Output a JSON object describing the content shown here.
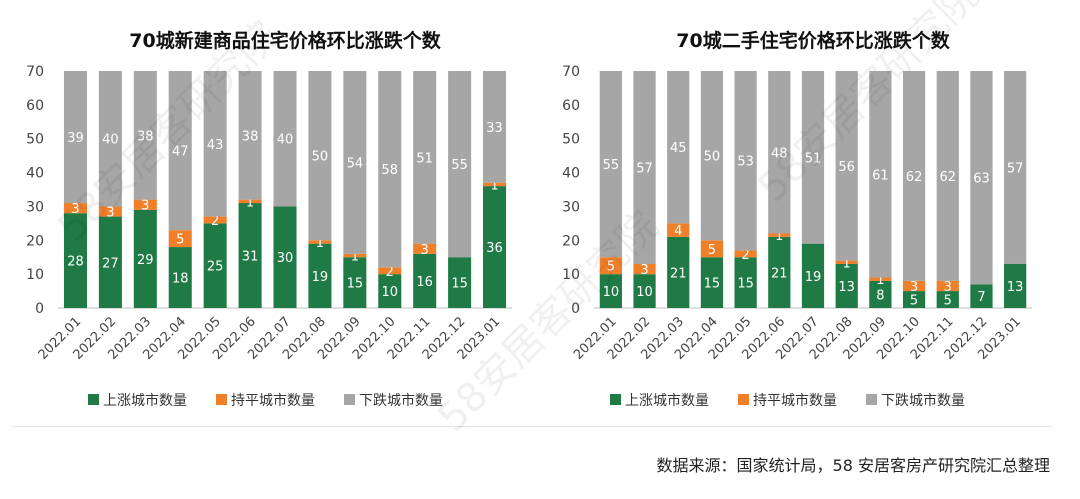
{
  "colors": {
    "up": "#1f7a45",
    "flat": "#f07f2a",
    "down": "#a6a6a6"
  },
  "source_text": "数据来源：国家统计局，58 安居客房产研究院汇总整理",
  "watermark_text": "58安居客研究院",
  "chart_data": [
    {
      "type": "bar",
      "stacked": true,
      "title": "70城新建商品住宅价格环比涨跌个数",
      "categories": [
        "2022.01",
        "2022.02",
        "2022.03",
        "2022.04",
        "2022.05",
        "2022.06",
        "2022.07",
        "2022.08",
        "2022.09",
        "2022.10",
        "2022.11",
        "2022.12",
        "2023.01"
      ],
      "series": [
        {
          "name": "上涨城市数量",
          "color": "#1f7a45",
          "values": [
            28,
            27,
            29,
            18,
            25,
            31,
            30,
            19,
            15,
            10,
            16,
            15,
            36
          ]
        },
        {
          "name": "持平城市数量",
          "color": "#f07f2a",
          "values": [
            3,
            3,
            3,
            5,
            2,
            1,
            0,
            1,
            1,
            2,
            3,
            0,
            1
          ]
        },
        {
          "name": "下跌城市数量",
          "color": "#a6a6a6",
          "values": [
            39,
            40,
            38,
            47,
            43,
            38,
            40,
            50,
            54,
            58,
            51,
            55,
            33
          ]
        }
      ],
      "ylim": [
        0,
        70
      ],
      "yticks": [
        0,
        10,
        20,
        30,
        40,
        50,
        60,
        70
      ],
      "grid": false,
      "legend_position": "bottom"
    },
    {
      "type": "bar",
      "stacked": true,
      "title": "70城二手住宅价格环比涨跌个数",
      "categories": [
        "2022.01",
        "2022.02",
        "2022.03",
        "2022.04",
        "2022.05",
        "2022.06",
        "2022.07",
        "2022.08",
        "2022.09",
        "2022.10",
        "2022.11",
        "2022.12",
        "2023.01"
      ],
      "series": [
        {
          "name": "上涨城市数量",
          "color": "#1f7a45",
          "values": [
            10,
            10,
            21,
            15,
            15,
            21,
            19,
            13,
            8,
            5,
            5,
            7,
            13
          ]
        },
        {
          "name": "持平城市数量",
          "color": "#f07f2a",
          "values": [
            5,
            3,
            4,
            5,
            2,
            1,
            0,
            1,
            1,
            3,
            3,
            0,
            0
          ]
        },
        {
          "name": "下跌城市数量",
          "color": "#a6a6a6",
          "values": [
            55,
            57,
            45,
            50,
            53,
            48,
            51,
            56,
            61,
            62,
            62,
            63,
            57
          ]
        }
      ],
      "ylim": [
        0,
        70
      ],
      "yticks": [
        0,
        10,
        20,
        30,
        40,
        50,
        60,
        70
      ],
      "grid": false,
      "legend_position": "bottom"
    }
  ]
}
